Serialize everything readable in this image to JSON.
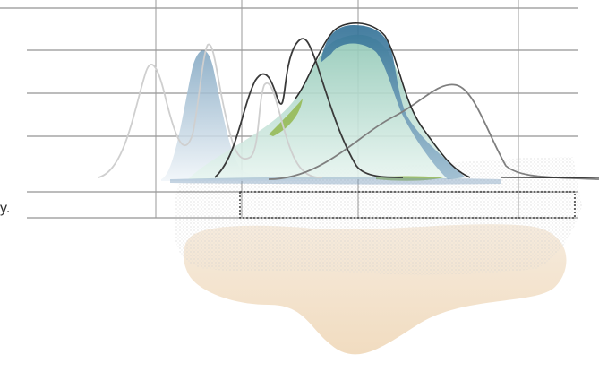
{
  "fragment_text": "y.",
  "colors": {
    "background": "#ffffff",
    "grid_line": "#7a7a7a",
    "blue_peak_fill": "#3f7fa0",
    "mint_peak_fill": "#bfe3d5",
    "lime_accent": "#93b74f",
    "gray_curve_dark": "#3a3a3a",
    "gray_curve_mid": "#7f7f7f",
    "gray_curve_light": "#c8c8c8",
    "sand_blob": "#f3e3cf",
    "stipple": "#cfcfcf"
  }
}
